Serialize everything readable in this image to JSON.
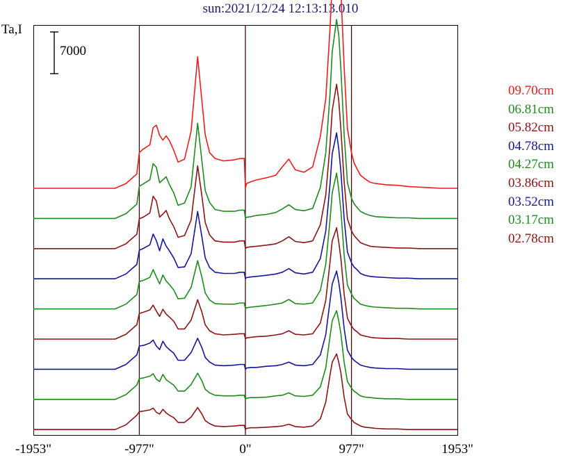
{
  "chart_data": {
    "type": "line",
    "title": "sun:2021/12/24 12:13:13.010",
    "ylabel": "Ta,I",
    "scale_bar": {
      "label": "7000",
      "value": 7000
    },
    "x_ticks": [
      "-1953\"",
      "-977\"",
      "0\"",
      "977\"",
      "1953\""
    ],
    "x_tick_values": [
      -1953,
      -977,
      0,
      977,
      1953
    ],
    "xlim": [
      -1953,
      1953
    ],
    "vertical_lines_at": [
      -977,
      0,
      977
    ],
    "legend_placement": "right",
    "x": [
      -1953,
      -1500,
      -1200,
      -1100,
      -1000,
      -977,
      -940,
      -880,
      -850,
      -820,
      -790,
      -760,
      -730,
      -700,
      -660,
      -620,
      -560,
      -500,
      -440,
      -400,
      -370,
      -330,
      -280,
      -200,
      -100,
      -50,
      -10,
      0,
      10,
      50,
      100,
      200,
      280,
      340,
      400,
      460,
      540,
      620,
      690,
      740,
      780,
      800,
      840,
      860,
      880,
      910,
      940,
      977,
      1000,
      1030,
      1060,
      1100,
      1150,
      1200,
      1300,
      1400,
      1500,
      1600,
      1700,
      1800,
      1953
    ],
    "series": [
      {
        "name": "09.70cm",
        "color": "#ee1c1c",
        "values": [
          0,
          0,
          0,
          800,
          2400,
          6000,
          6600,
          7300,
          10200,
          10600,
          8900,
          8100,
          8800,
          8000,
          6400,
          4400,
          4900,
          9600,
          22100,
          14600,
          9000,
          6000,
          5000,
          4600,
          4800,
          5000,
          5000,
          0,
          800,
          1100,
          1400,
          1800,
          2200,
          3600,
          4900,
          3100,
          2700,
          3600,
          8700,
          15000,
          27000,
          34400,
          41000,
          39700,
          33000,
          20300,
          10000,
          6000,
          4300,
          3200,
          2200,
          1600,
          1000,
          800,
          600,
          500,
          300,
          200,
          100,
          0,
          0
        ]
      },
      {
        "name": "06.81cm",
        "color": "#1e8a1e",
        "values": [
          0,
          0,
          0,
          800,
          2400,
          5400,
          5800,
          6500,
          9200,
          8600,
          6000,
          6500,
          7000,
          5700,
          4300,
          2200,
          2600,
          5300,
          16000,
          9600,
          4700,
          2700,
          1500,
          1200,
          1200,
          1400,
          1400,
          0,
          200,
          300,
          500,
          700,
          1000,
          1600,
          2300,
          1500,
          1300,
          1700,
          5200,
          11000,
          21000,
          28000,
          33400,
          30800,
          25000,
          14000,
          6000,
          3400,
          2500,
          1800,
          1200,
          800,
          500,
          300,
          200,
          100,
          100,
          0,
          0,
          0,
          0
        ]
      },
      {
        "name": "05.82cm",
        "color": "#8b1414",
        "values": [
          0,
          0,
          0,
          800,
          2400,
          5000,
          5300,
          6000,
          8800,
          8000,
          5300,
          5800,
          6400,
          5000,
          3700,
          1900,
          2200,
          4800,
          13900,
          8800,
          4400,
          2300,
          1300,
          1100,
          1100,
          1300,
          1300,
          0,
          200,
          300,
          400,
          600,
          800,
          1300,
          2000,
          1200,
          1000,
          1300,
          4000,
          9000,
          17500,
          23200,
          27600,
          24900,
          20000,
          11200,
          5000,
          3000,
          2200,
          1600,
          1000,
          700,
          400,
          300,
          200,
          100,
          100,
          0,
          0,
          0,
          0
        ]
      },
      {
        "name": "04.78cm",
        "color": "#14149a",
        "values": [
          0,
          0,
          0,
          800,
          2400,
          4800,
          5100,
          5700,
          7500,
          6400,
          4700,
          6700,
          5500,
          4700,
          3500,
          1900,
          2000,
          4200,
          11300,
          7000,
          3500,
          1900,
          1100,
          900,
          900,
          1100,
          1100,
          0,
          200,
          300,
          400,
          600,
          800,
          1100,
          1700,
          1000,
          800,
          1100,
          3400,
          8000,
          16000,
          21000,
          24500,
          21800,
          18000,
          10000,
          4500,
          2700,
          2000,
          1500,
          900,
          600,
          400,
          300,
          200,
          100,
          100,
          0,
          0,
          0,
          0
        ]
      },
      {
        "name": "04.27cm",
        "color": "#1e8a1e",
        "values": [
          0,
          0,
          0,
          800,
          2400,
          4600,
          4800,
          5300,
          6600,
          5400,
          4200,
          5700,
          4700,
          4100,
          3200,
          1700,
          1800,
          3600,
          8100,
          5300,
          2700,
          1500,
          900,
          800,
          800,
          1000,
          1000,
          0,
          200,
          300,
          400,
          600,
          800,
          1000,
          1600,
          900,
          800,
          1000,
          3100,
          7500,
          15000,
          19500,
          22800,
          20000,
          16500,
          9000,
          4000,
          2500,
          1800,
          1300,
          800,
          600,
          400,
          300,
          200,
          100,
          100,
          0,
          0,
          0,
          0
        ]
      },
      {
        "name": "03.86cm",
        "color": "#8b1414",
        "values": [
          0,
          0,
          0,
          800,
          2400,
          4300,
          4500,
          4900,
          5700,
          4700,
          3800,
          5000,
          4200,
          3700,
          3000,
          1700,
          1700,
          3200,
          6600,
          4500,
          2400,
          1400,
          900,
          700,
          800,
          900,
          900,
          0,
          200,
          300,
          400,
          500,
          700,
          900,
          1400,
          800,
          700,
          900,
          2700,
          6500,
          13000,
          16500,
          18700,
          16300,
          13500,
          7500,
          3500,
          2200,
          1600,
          1200,
          700,
          500,
          300,
          200,
          100,
          100,
          0,
          0,
          0,
          0,
          0
        ]
      },
      {
        "name": "03.52cm",
        "color": "#14149a",
        "values": [
          0,
          0,
          0,
          800,
          2400,
          3900,
          4000,
          4400,
          4900,
          3900,
          3300,
          4700,
          3800,
          3300,
          2700,
          1500,
          1500,
          2800,
          5200,
          3600,
          2000,
          1200,
          700,
          600,
          700,
          800,
          800,
          0,
          200,
          300,
          300,
          500,
          600,
          800,
          1200,
          700,
          600,
          800,
          2400,
          5800,
          11500,
          14300,
          16500,
          14600,
          12000,
          6800,
          3200,
          2000,
          1500,
          1100,
          700,
          500,
          300,
          200,
          100,
          100,
          0,
          0,
          0,
          0,
          0
        ]
      },
      {
        "name": "03.17cm",
        "color": "#1e8a1e",
        "values": [
          0,
          0,
          0,
          800,
          2400,
          3500,
          3600,
          3900,
          4300,
          3400,
          3000,
          4200,
          3300,
          2900,
          2400,
          1400,
          1400,
          2500,
          4400,
          3100,
          1700,
          1100,
          700,
          600,
          600,
          700,
          700,
          0,
          200,
          300,
          300,
          400,
          600,
          700,
          1100,
          600,
          500,
          700,
          2100,
          5300,
          10600,
          13200,
          14900,
          13200,
          11000,
          6200,
          3000,
          1900,
          1400,
          1000,
          600,
          400,
          300,
          200,
          100,
          100,
          0,
          0,
          0,
          0,
          0
        ]
      },
      {
        "name": "02.78cm",
        "color": "#8b1414",
        "values": [
          0,
          0,
          0,
          800,
          2400,
          3000,
          3100,
          3300,
          3600,
          2900,
          2600,
          3400,
          2800,
          2400,
          2000,
          1200,
          1200,
          2100,
          3700,
          2600,
          1500,
          1000,
          600,
          500,
          600,
          700,
          700,
          0,
          200,
          300,
          300,
          400,
          500,
          600,
          900,
          500,
          400,
          600,
          1800,
          4600,
          9200,
          11300,
          12700,
          11300,
          9500,
          5400,
          2600,
          1700,
          1200,
          900,
          600,
          400,
          300,
          200,
          100,
          100,
          0,
          0,
          0,
          0,
          0
        ]
      }
    ]
  }
}
